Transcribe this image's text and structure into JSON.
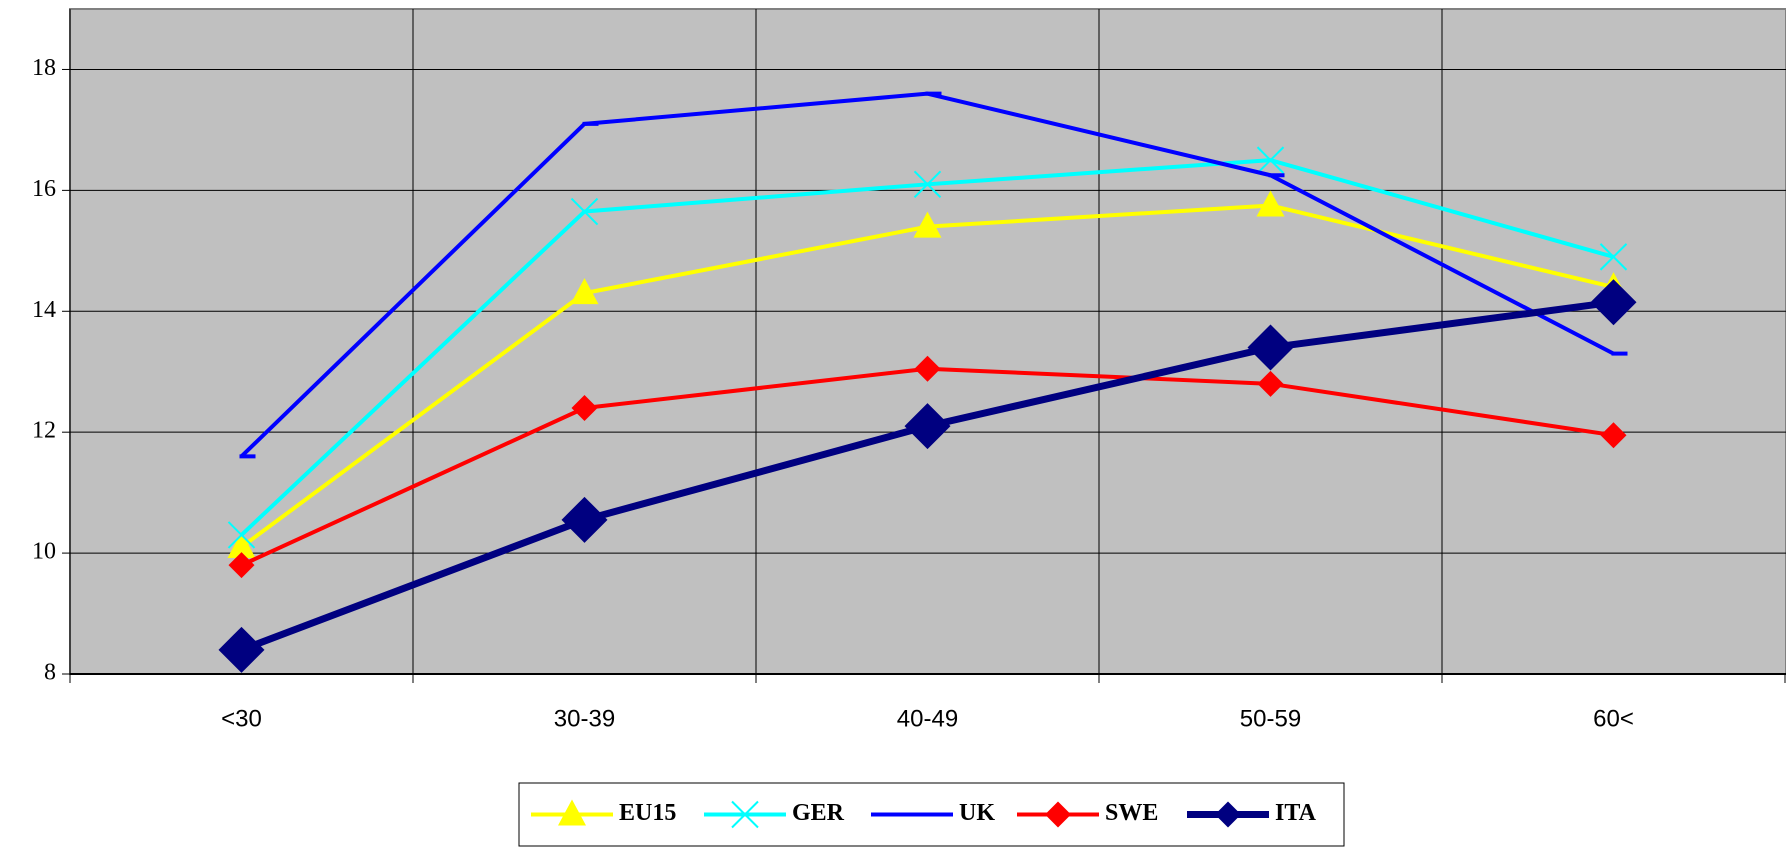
{
  "chart_data": {
    "type": "line",
    "categories": [
      "<30",
      "30-39",
      "40-49",
      "50-59",
      "60<"
    ],
    "series": [
      {
        "name": "EU15",
        "color": "#ffff00",
        "marker": "triangle",
        "values": [
          10.1,
          14.3,
          15.4,
          15.75,
          14.4
        ]
      },
      {
        "name": "GER",
        "color": "#00ffff",
        "marker": "x",
        "values": [
          10.3,
          15.65,
          16.1,
          16.5,
          14.9
        ]
      },
      {
        "name": "UK",
        "color": "#0000ff",
        "marker": "dash",
        "values": [
          11.6,
          17.1,
          17.6,
          16.25,
          13.3
        ]
      },
      {
        "name": "SWE",
        "color": "#ff0000",
        "marker": "diamond",
        "values": [
          9.8,
          12.4,
          13.05,
          12.8,
          11.95
        ]
      },
      {
        "name": "ITA",
        "color": "#000080",
        "marker": "big-diamond",
        "values": [
          8.4,
          10.55,
          12.1,
          13.4,
          14.15
        ]
      }
    ],
    "ylim": [
      8,
      19
    ],
    "yticks": [
      8,
      10,
      12,
      14,
      16,
      18
    ],
    "grid": true,
    "legend": "bottom"
  }
}
